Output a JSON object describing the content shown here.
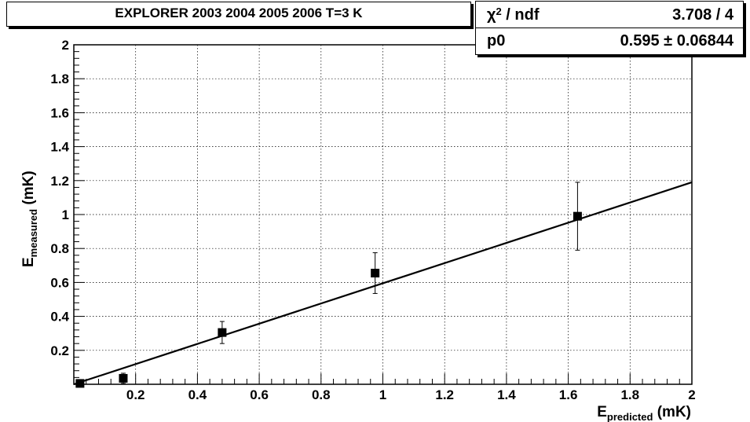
{
  "chart_data": {
    "type": "scatter",
    "title": "EXPLORER 2003 2004 2005 2006 T=3 K",
    "xlabel_main": "E",
    "xlabel_sub": "predicted",
    "xlabel_unit": " (mK)",
    "ylabel_main": "E",
    "ylabel_sub": "measured",
    "ylabel_unit": " (mK)",
    "xlim": [
      0,
      2
    ],
    "ylim": [
      0,
      2
    ],
    "x_ticks": [
      "0.2",
      "0.4",
      "0.6",
      "0.8",
      "1",
      "1.2",
      "1.4",
      "1.6",
      "1.8",
      "2"
    ],
    "y_ticks": [
      "0.2",
      "0.4",
      "0.6",
      "0.8",
      "1",
      "1.2",
      "1.4",
      "1.6",
      "1.8",
      "2"
    ],
    "grid": true,
    "points": [
      {
        "x": 0.02,
        "y": 0.005,
        "err": 0.005
      },
      {
        "x": 0.16,
        "y": 0.035,
        "err": 0.03
      },
      {
        "x": 0.48,
        "y": 0.305,
        "err": 0.065
      },
      {
        "x": 0.975,
        "y": 0.655,
        "err": 0.12
      },
      {
        "x": 1.63,
        "y": 0.99,
        "err": 0.2
      }
    ],
    "fit": {
      "p0": 0.595,
      "x_range": [
        0,
        2
      ]
    },
    "stats": {
      "chi_label": "χ",
      "chi_sup": "2",
      "chi_rest": " / ndf",
      "chi_value": "3.708 / 4",
      "p0_label": "p0",
      "p0_value": "0.595 ± 0.06844"
    }
  }
}
